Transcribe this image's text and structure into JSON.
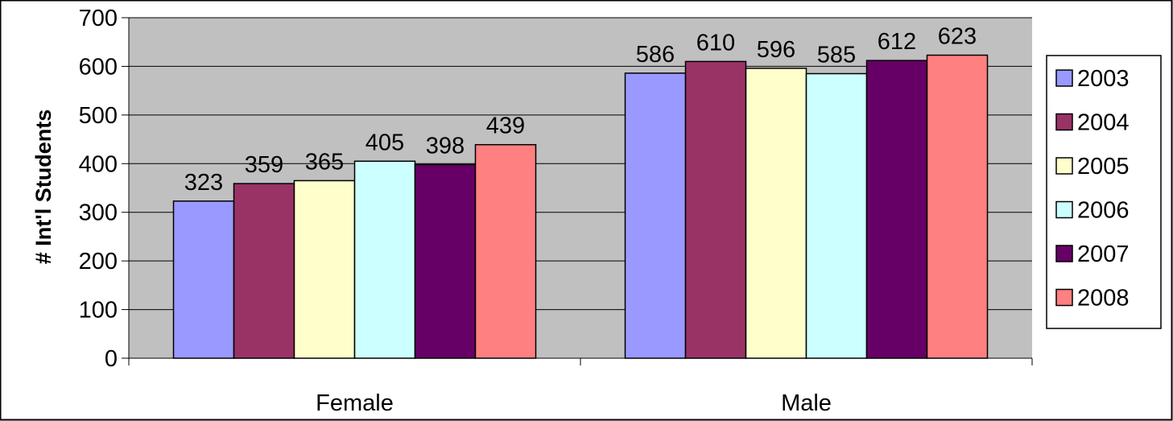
{
  "colors": {
    "plot_background": "#c0c0c0",
    "grid": "#000000",
    "bar_outline": "#000000"
  },
  "chart_data": {
    "type": "bar",
    "title": "",
    "xlabel": "",
    "ylabel": "# Int'l Students",
    "ylim": [
      0,
      700
    ],
    "yticks": [
      0,
      100,
      200,
      300,
      400,
      500,
      600,
      700
    ],
    "grid": true,
    "legend_position": "right",
    "categories": [
      "Female",
      "Male"
    ],
    "series": [
      {
        "name": "2003",
        "color": "#9999ff",
        "values": [
          323,
          586
        ]
      },
      {
        "name": "2004",
        "color": "#993366",
        "values": [
          359,
          610
        ]
      },
      {
        "name": "2005",
        "color": "#ffffcc",
        "values": [
          365,
          596
        ]
      },
      {
        "name": "2006",
        "color": "#ccffff",
        "values": [
          405,
          585
        ]
      },
      {
        "name": "2007",
        "color": "#660066",
        "values": [
          398,
          612
        ]
      },
      {
        "name": "2008",
        "color": "#ff8080",
        "values": [
          439,
          623
        ]
      }
    ]
  }
}
